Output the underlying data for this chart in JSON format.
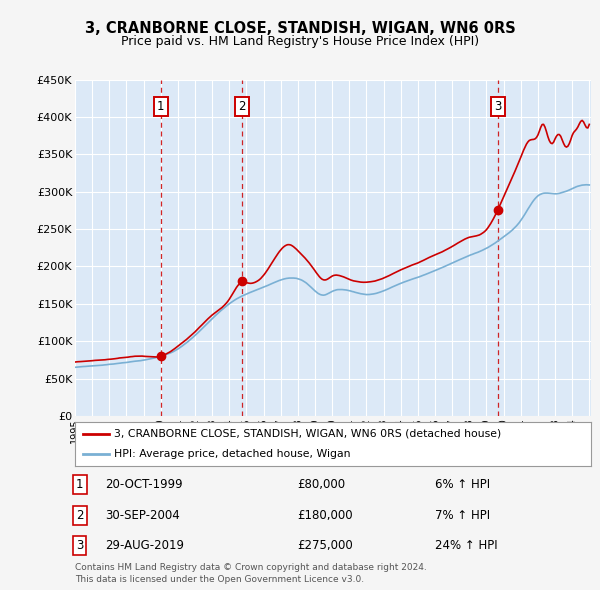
{
  "title": "3, CRANBORNE CLOSE, STANDISH, WIGAN, WN6 0RS",
  "subtitle": "Price paid vs. HM Land Registry's House Price Index (HPI)",
  "bg_color": "#ffffff",
  "plot_bg_color": "#dce9f7",
  "grid_color": "#ffffff",
  "ylim": [
    0,
    450000
  ],
  "yticks": [
    0,
    50000,
    100000,
    150000,
    200000,
    250000,
    300000,
    350000,
    400000,
    450000
  ],
  "ytick_labels": [
    "£0",
    "£50K",
    "£100K",
    "£150K",
    "£200K",
    "£250K",
    "£300K",
    "£350K",
    "£400K",
    "£450K"
  ],
  "xstart": 1995,
  "xend": 2025,
  "sales": [
    {
      "year": 2000.0,
      "price": 80000,
      "label": "1"
    },
    {
      "year": 2004.75,
      "price": 180000,
      "label": "2"
    },
    {
      "year": 2019.67,
      "price": 275000,
      "label": "3"
    }
  ],
  "sales_color": "#cc0000",
  "hpi_color": "#7ab0d4",
  "legend_label_sales": "3, CRANBORNE CLOSE, STANDISH, WIGAN, WN6 0RS (detached house)",
  "legend_label_hpi": "HPI: Average price, detached house, Wigan",
  "table_entries": [
    {
      "num": "1",
      "date": "20-OCT-1999",
      "price": "£80,000",
      "hpi": "6% ↑ HPI"
    },
    {
      "num": "2",
      "date": "30-SEP-2004",
      "price": "£180,000",
      "hpi": "7% ↑ HPI"
    },
    {
      "num": "3",
      "date": "29-AUG-2019",
      "price": "£275,000",
      "hpi": "24% ↑ HPI"
    }
  ],
  "footer": "Contains HM Land Registry data © Crown copyright and database right 2024.\nThis data is licensed under the Open Government Licence v3.0."
}
